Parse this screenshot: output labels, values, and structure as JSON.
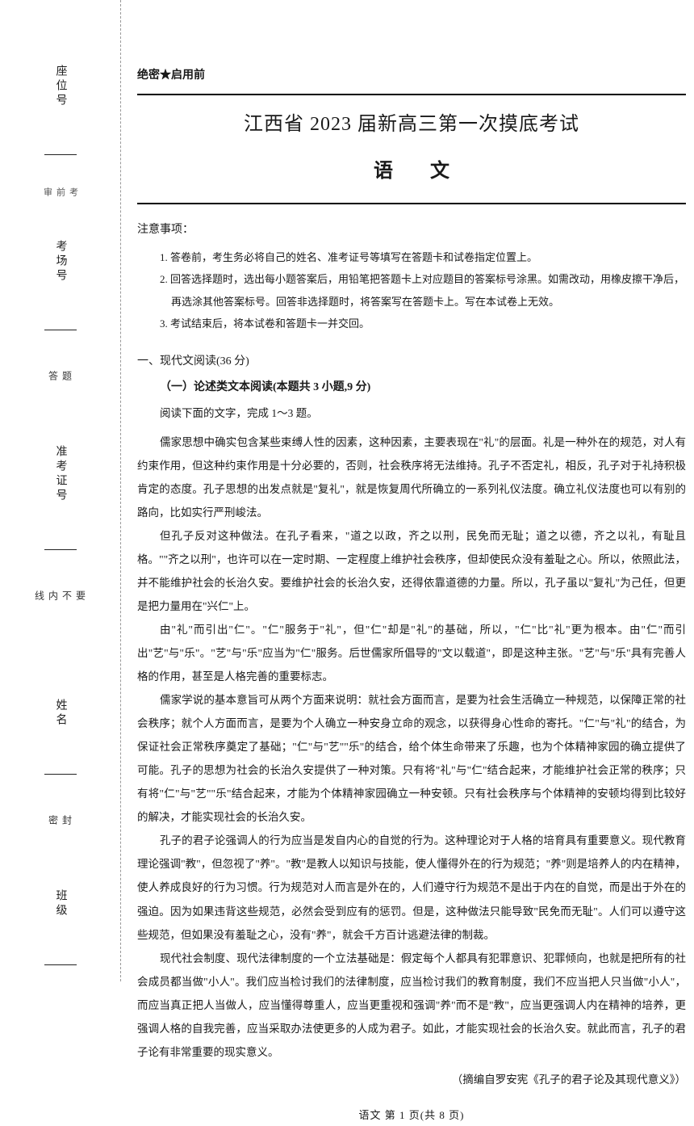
{
  "sidebar": {
    "fields": [
      {
        "label": "座位号"
      },
      {
        "label": "考场号"
      },
      {
        "label": "准考证号"
      },
      {
        "label": "姓名"
      },
      {
        "label": "班级"
      }
    ],
    "vertical_markers": [
      "题",
      "答",
      "要",
      "不",
      "内",
      "线",
      "封",
      "密"
    ],
    "inner_tag": "考 前 审"
  },
  "header": {
    "secret_label": "绝密★启用前",
    "main_title": "江西省 2023 届新高三第一次摸底考试",
    "subject": "语 文"
  },
  "notice": {
    "heading": "注意事项：",
    "items": [
      "1. 答卷前，考生务必将自己的姓名、准考证号等填写在答题卡和试卷指定位置上。",
      "2. 回答选择题时，选出每小题答案后，用铅笔把答题卡上对应题目的答案标号涂黑。如需改动，用橡皮擦干净后，再选涂其他答案标号。回答非选择题时，将答案写在答题卡上。写在本试卷上无效。",
      "3. 考试结束后，将本试卷和答题卡一并交回。"
    ]
  },
  "section": {
    "heading": "一、现代文阅读(36 分)",
    "subsection": "（一）论述类文本阅读(本题共 3 小题,9 分)",
    "instruction": "阅读下面的文字，完成 1～3 题。"
  },
  "passage": {
    "paragraphs": [
      "儒家思想中确实包含某些束缚人性的因素，这种因素，主要表现在\"礼\"的层面。礼是一种外在的规范，对人有约束作用，但这种约束作用是十分必要的，否则，社会秩序将无法维持。孔子不否定礼，相反，孔子对于礼持积极肯定的态度。孔子思想的出发点就是\"复礼\"，就是恢复周代所确立的一系列礼仪法度。确立礼仪法度也可以有别的路向，比如实行严刑峻法。",
      "但孔子反对这种做法。在孔子看来，\"道之以政，齐之以刑，民免而无耻；道之以德，齐之以礼，有耻且格。\"\"齐之以刑\"，也许可以在一定时期、一定程度上维护社会秩序，但却使民众没有羞耻之心。所以，依照此法，并不能维护社会的长治久安。要维护社会的长治久安，还得依靠道德的力量。所以，孔子虽以\"复礼\"为己任，但更是把力量用在\"兴仁\"上。",
      "由\"礼\"而引出\"仁\"。\"仁\"服务于\"礼\"，但\"仁\"却是\"礼\"的基础，所以，\"仁\"比\"礼\"更为根本。由\"仁\"而引出\"艺\"与\"乐\"。\"艺\"与\"乐\"应当为\"仁\"服务。后世儒家所倡导的\"文以载道\"，即是这种主张。\"艺\"与\"乐\"具有完善人格的作用，甚至是人格完善的重要标志。",
      "儒家学说的基本意旨可从两个方面来说明：就社会方面而言，是要为社会生活确立一种规范，以保障正常的社会秩序；就个人方面而言，是要为个人确立一种安身立命的观念，以获得身心性命的寄托。\"仁\"与\"礼\"的结合，为保证社会正常秩序奠定了基础；\"仁\"与\"艺\"\"乐\"的结合，给个体生命带来了乐趣，也为个体精神家园的确立提供了可能。孔子的思想为社会的长治久安提供了一种对策。只有将\"礼\"与\"仁\"结合起来，才能维护社会正常的秩序；只有将\"仁\"与\"艺\"\"乐\"结合起来，才能为个体精神家园确立一种安顿。只有社会秩序与个体精神的安顿均得到比较好的解决，才能实现社会的长治久安。",
      "孔子的君子论强调人的行为应当是发自内心的自觉的行为。这种理论对于人格的培育具有重要意义。现代教育理论强调\"教\"，但忽视了\"养\"。\"教\"是教人以知识与技能，使人懂得外在的行为规范；\"养\"则是培养人的内在精神，使人养成良好的行为习惯。行为规范对人而言是外在的，人们遵守行为规范不是出于内在的自觉，而是出于外在的强迫。因为如果违背这些规范，必然会受到应有的惩罚。但是，这种做法只能导致\"民免而无耻\"。人们可以遵守这些规范，但如果没有羞耻之心，没有\"养\"，就会千方百计逃避法律的制裁。",
      "现代社会制度、现代法律制度的一个立法基础是：假定每个人都具有犯罪意识、犯罪倾向，也就是把所有的社会成员都当做\"小人\"。我们应当检讨我们的法律制度，应当检讨我们的教育制度，我们不应当把人只当做\"小人\"，而应当真正把人当做人，应当懂得尊重人，应当更重视和强调\"养\"而不是\"教\"，应当更强调人内在精神的培养，更强调人格的自我完善，应当采取办法使更多的人成为君子。如此，才能实现社会的长治久安。就此而言，孔子的君子论有非常重要的现实意义。"
    ],
    "citation": "（摘编自罗安宪《孔子的君子论及其现代意义》）"
  },
  "footer": {
    "text": "语文 第 1 页(共 8 页)"
  }
}
